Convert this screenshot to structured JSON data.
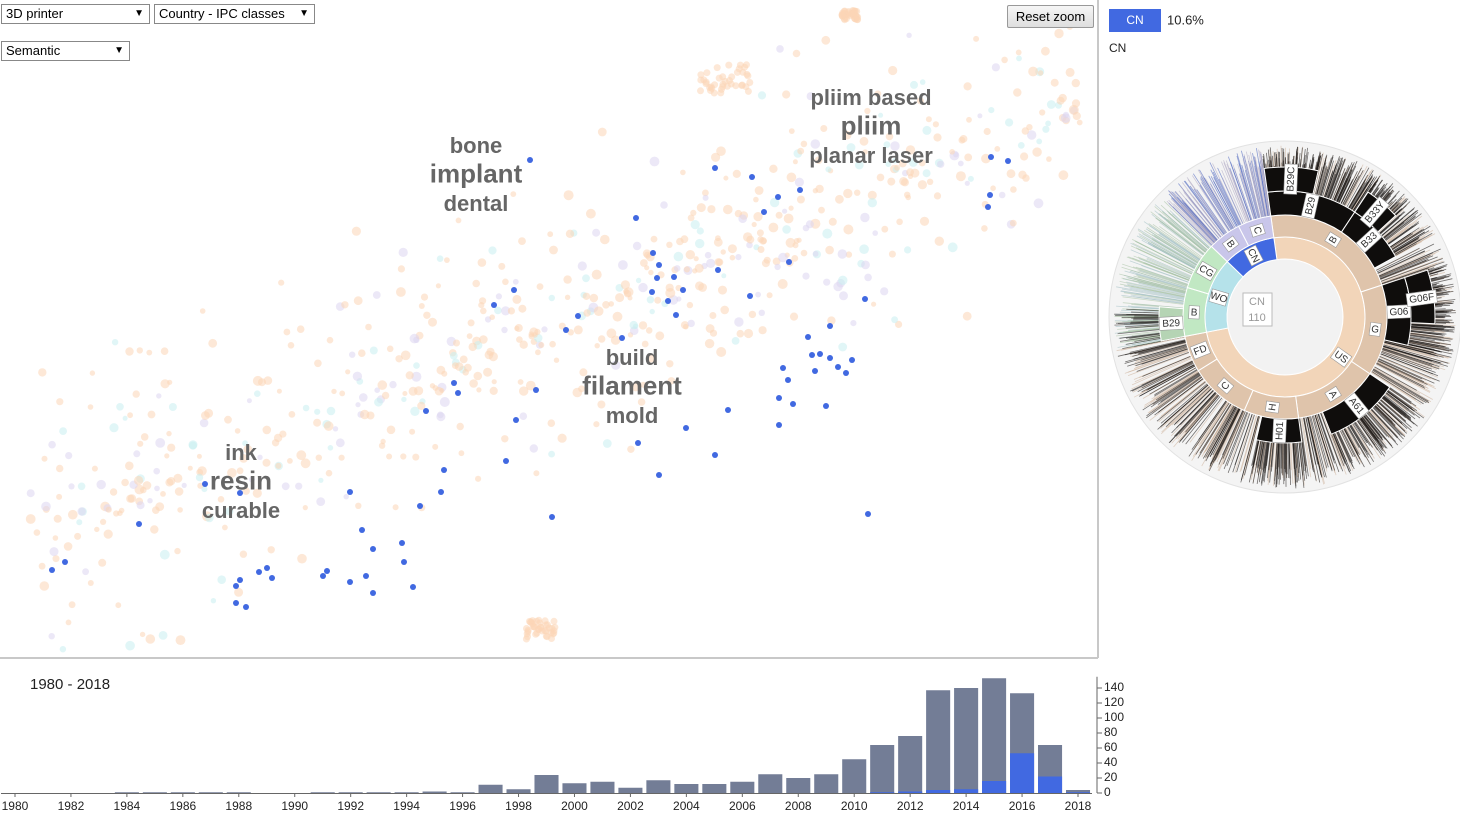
{
  "controls": {
    "dataset": "3D printer",
    "coloring": "Country - IPC classes",
    "layout": "Semantic",
    "reset": "Reset zoom"
  },
  "chart_data": [
    {
      "type": "scatter",
      "xlim": [
        0,
        109.8
      ],
      "ylim": [
        0,
        65.7
      ],
      "series": [
        {
          "name": "CN",
          "color": "#4169e1",
          "share_label": "10.6%",
          "x": [
            53.0,
            71.5,
            75.2,
            80.0,
            77.8,
            76.4,
            63.6,
            99.1,
            100.8,
            99.0,
            98.8,
            65.3,
            65.9,
            65.7,
            67.4,
            71.8,
            78.9,
            68.3,
            65.2,
            66.8,
            67.6,
            51.4,
            49.4,
            57.8,
            56.6,
            62.2,
            75.0,
            86.5,
            83.0,
            80.8,
            81.2,
            82.0,
            83.0,
            81.5,
            83.8,
            85.2,
            84.6,
            78.3,
            78.8,
            77.9,
            79.3,
            82.6,
            77.9,
            45.4,
            45.8,
            42.6,
            53.6,
            51.6,
            63.8,
            68.6,
            72.8,
            71.5,
            65.9,
            50.6,
            44.1,
            44.4,
            42.0,
            35.0,
            55.2,
            86.8,
            36.2,
            37.3,
            40.2,
            40.4,
            41.3,
            36.6,
            37.3,
            35.0,
            32.7,
            32.3,
            26.7,
            27.2,
            25.9,
            24.0,
            23.6,
            23.6,
            24.6,
            13.9,
            6.5,
            5.2,
            20.5,
            24.0
          ],
          "values": [
            49.7,
            48.9,
            48.0,
            46.7,
            46.0,
            44.5,
            43.9,
            50.0,
            49.6,
            46.2,
            45.0,
            40.4,
            39.2,
            37.9,
            38.0,
            38.7,
            39.5,
            36.7,
            36.5,
            35.6,
            34.2,
            36.7,
            35.2,
            34.1,
            32.7,
            31.9,
            36.1,
            35.8,
            33.1,
            32.0,
            30.2,
            30.3,
            29.9,
            28.6,
            29.0,
            29.7,
            28.4,
            28.9,
            27.7,
            25.9,
            25.3,
            25.1,
            23.2,
            27.4,
            26.4,
            24.6,
            26.7,
            23.7,
            21.4,
            22.9,
            24.7,
            20.2,
            18.2,
            19.6,
            16.5,
            18.7,
            15.1,
            16.5,
            14.0,
            14.3,
            12.7,
            10.8,
            11.4,
            9.5,
            7.0,
            8.1,
            6.4,
            7.5,
            8.6,
            8.1,
            8.9,
            7.9,
            8.5,
            7.7,
            7.1,
            5.4,
            5.0,
            13.3,
            9.5,
            8.7,
            17.3,
            16.4
          ]
        }
      ],
      "topics": [
        {
          "terms": [
            "bone",
            "implant",
            "dental"
          ]
        },
        {
          "terms": [
            "pliim based",
            "pliim",
            "planar laser"
          ]
        },
        {
          "terms": [
            "build",
            "filament",
            "mold"
          ]
        },
        {
          "terms": [
            "ink",
            "resin",
            "curable"
          ]
        }
      ]
    },
    {
      "type": "sunburst",
      "children": [
        {
          "name": "US",
          "value": 770,
          "color": "#f2d5b9",
          "children": [
            {
              "name": "B",
              "value": 230,
              "children": [
                {
                  "name": "B29",
                  "value": 120,
                  "children": [
                    {
                      "name": "B29C",
                      "value": 60
                    }
                  ]
                },
                {
                  "name": "B33",
                  "value": 80,
                  "children": [
                    {
                      "name": "B33Y",
                      "value": 40
                    }
                  ]
                }
              ]
            },
            {
              "name": "G",
              "value": 150,
              "children": [
                {
                  "name": "G06",
                  "value": 90,
                  "children": [
                    {
                      "name": "G06F",
                      "value": 60
                    }
                  ]
                }
              ]
            },
            {
              "name": "A",
              "value": 140,
              "children": [
                {
                  "name": "A61",
                  "value": 100
                }
              ]
            },
            {
              "name": "H",
              "value": 90,
              "children": [
                {
                  "name": "H01",
                  "value": 60
                }
              ]
            },
            {
              "name": "C",
              "value": 100
            },
            {
              "name": "FD",
              "value": 60
            }
          ]
        },
        {
          "name": "WO",
          "value": 158,
          "color": "#b5e2ea",
          "children": [
            {
              "name": "B",
              "value": 80,
              "color": "#c1e8c3",
              "children": [
                {
                  "name": "B29",
                  "value": 45
                }
              ]
            },
            {
              "name": "CG",
              "value": 78,
              "color": "#c1e8c3"
            }
          ]
        },
        {
          "name": "CN",
          "value": 110,
          "color": "#4169e1",
          "children": [
            {
              "name": "B",
              "value": 55,
              "color": "#c9c6ea"
            },
            {
              "name": "C",
              "value": 55,
              "color": "#c9c6ea"
            }
          ]
        }
      ]
    },
    {
      "type": "bar",
      "range_label": "1980 - 2018",
      "x": [
        1980,
        1981,
        1982,
        1983,
        1984,
        1985,
        1986,
        1987,
        1988,
        1989,
        1990,
        1991,
        1992,
        1993,
        1994,
        1995,
        1996,
        1997,
        1998,
        1999,
        2000,
        2001,
        2002,
        2003,
        2004,
        2005,
        2006,
        2007,
        2008,
        2009,
        2010,
        2011,
        2012,
        2013,
        2014,
        2015,
        2016,
        2017,
        2018
      ],
      "xlim": [
        1979.5,
        2018.5
      ],
      "xticks": [
        1980,
        1982,
        1984,
        1986,
        1988,
        1990,
        1992,
        1994,
        1996,
        1998,
        2000,
        2002,
        2004,
        2006,
        2008,
        2010,
        2012,
        2014,
        2016,
        2018
      ],
      "ylim": [
        0,
        155
      ],
      "yticks": [
        0,
        20,
        40,
        60,
        80,
        100,
        120,
        140
      ],
      "series": [
        {
          "color": "#737d96",
          "values": [
            0,
            0,
            0,
            0,
            1,
            1,
            1,
            1,
            1,
            0,
            0,
            1,
            1,
            1,
            1,
            2,
            1,
            11,
            5,
            24,
            13,
            15,
            7,
            17,
            12,
            12,
            15,
            25,
            20,
            25,
            45,
            64,
            76,
            137,
            140,
            153,
            133,
            64,
            4
          ]
        },
        {
          "color": "#4169e1",
          "values": [
            0,
            0,
            0,
            0,
            0,
            0,
            0,
            0,
            0,
            0,
            0,
            0,
            0,
            0,
            0,
            0,
            0,
            0,
            0,
            0,
            0,
            0,
            0,
            0,
            0,
            0,
            0,
            0,
            0,
            0,
            0,
            1,
            2,
            4,
            5,
            16,
            53,
            22,
            1
          ]
        }
      ]
    }
  ]
}
